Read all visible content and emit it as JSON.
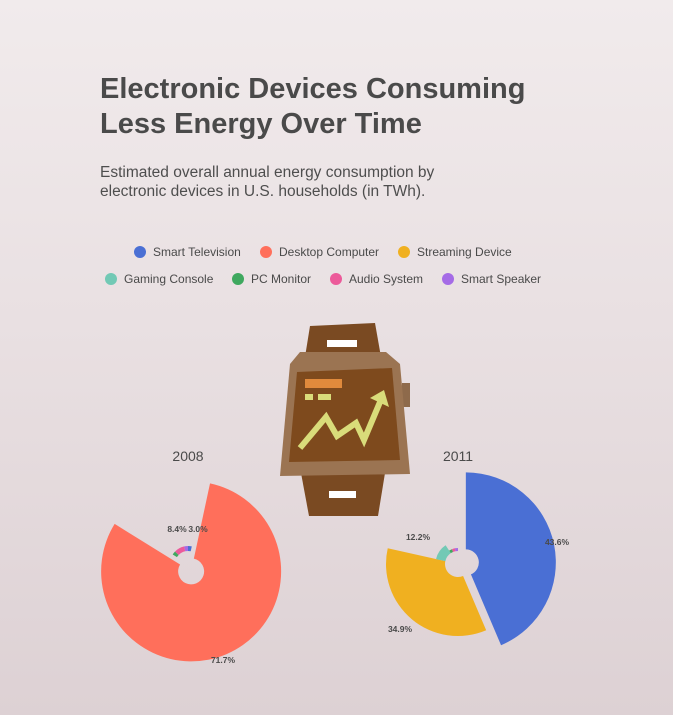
{
  "header": {
    "title_line1": "Electronic Devices Consuming",
    "title_line2": "Less Energy Over Time",
    "subtitle_line1": "Estimated overall annual energy consumption by",
    "subtitle_line2": "electronic devices in U.S. households (in TWh)."
  },
  "legend": {
    "items": [
      {
        "label": "Smart Television",
        "color": "#4a6fd4"
      },
      {
        "label": "Desktop Computer",
        "color": "#ff6f5b"
      },
      {
        "label": "Streaming Device",
        "color": "#f0b020"
      },
      {
        "label": "Gaming Console",
        "color": "#72c9b5"
      },
      {
        "label": "PC Monitor",
        "color": "#3fa85f"
      },
      {
        "label": "Audio System",
        "color": "#ec5a9a"
      },
      {
        "label": "Smart Speaker",
        "color": "#a56be6"
      }
    ]
  },
  "illustration": {
    "icon": "smartwatch-icon",
    "band_color": "#7a4a22",
    "screen_color": "#7e4a1d",
    "accent_color": "#e08a3c",
    "chart_line_color": "#d9dc7a"
  },
  "chart_data": [
    {
      "type": "pie",
      "title": "2008",
      "start_angle_deg": 0,
      "categories": [
        "Smart Television",
        "Desktop Computer",
        "Streaming Device",
        "Gaming Console",
        "PC Monitor",
        "Audio System",
        "Smart Speaker"
      ],
      "values": [
        3.0,
        71.7,
        0,
        0,
        3.0,
        8.4,
        3.0
      ],
      "labels": [
        "3.0%",
        "71.7%",
        "",
        "",
        "",
        "8.4%",
        ""
      ],
      "label_strings": {
        "small_left": "8.4%",
        "small_right": "3.0%",
        "large": "71.7%"
      },
      "relative_radius": [
        0.2,
        1.0,
        0.0,
        0.0,
        0.2,
        0.2,
        0.2
      ],
      "exploded_index": 1
    },
    {
      "type": "pie",
      "title": "2011",
      "start_angle_deg": 0,
      "categories": [
        "Smart Television",
        "Desktop Computer",
        "Streaming Device",
        "Gaming Console",
        "PC Monitor",
        "Audio System",
        "Smart Speaker"
      ],
      "values": [
        43.6,
        0,
        34.9,
        12.2,
        3.1,
        3.1,
        3.1
      ],
      "labels": [
        "43.6%",
        "",
        "34.9%",
        "12.2%",
        "",
        "",
        ""
      ],
      "relative_radius": [
        1.0,
        0.0,
        0.8,
        0.25,
        0.12,
        0.12,
        0.12
      ],
      "exploded_index": 0
    }
  ]
}
